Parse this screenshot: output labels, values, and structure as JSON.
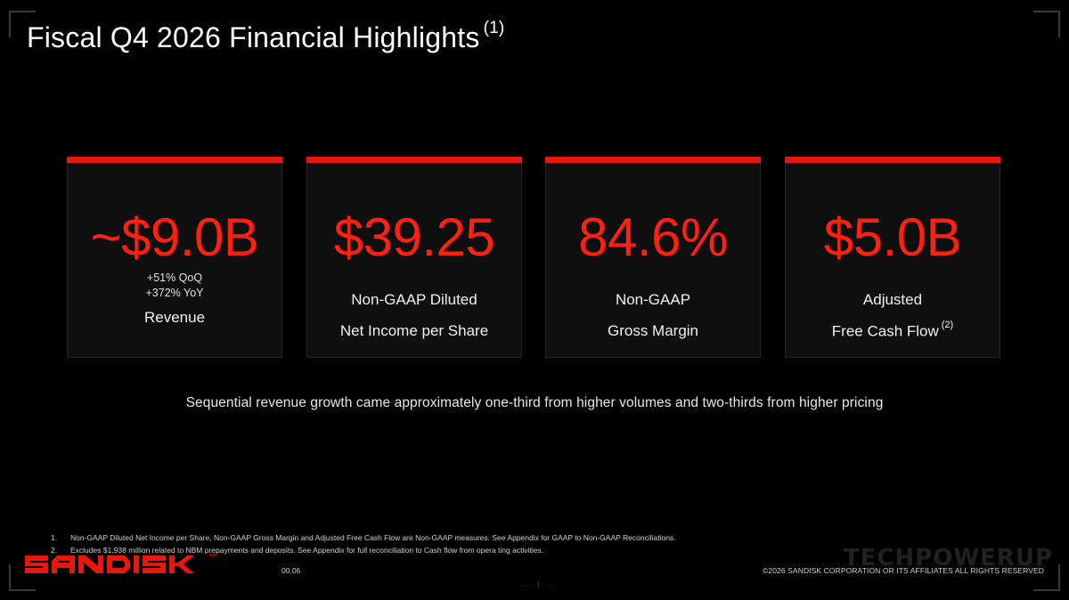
{
  "slide": {
    "title": "Fiscal Q4 2026 Financial Highlights",
    "title_footnote": "(1)",
    "accent_color": "#e8170e",
    "value_color": "#ff2010"
  },
  "cards": [
    {
      "value": "~$9.0B",
      "growth_qoq": "+51% QoQ",
      "growth_yoy": "+372% YoY",
      "label": "Revenue"
    },
    {
      "value": "$39.25",
      "label_line1": "Non-GAAP Diluted",
      "label_line2": "Net Income per Share"
    },
    {
      "value": "84.6%",
      "label_line1": "Non-GAAP",
      "label_line2": "Gross Margin"
    },
    {
      "value": "$5.0B",
      "label_line1": "Adjusted",
      "label_line2": "Free Cash Flow",
      "label_footnote": "(2)"
    }
  ],
  "summary": "Sequential revenue growth came approximately one-third from higher volumes and two-thirds from higher pricing",
  "footnotes": [
    {
      "num": "1.",
      "text": "Non-GAAP Diluted Net Income per Share, Non-GAAP Gross Margin and Adjusted Free Cash Flow are Non-GAAP measures. See Appendix for GAAP to Non-GAAP Reconciliations."
    },
    {
      "num": "2.",
      "text": "Excludes $1,938 million related to NBM prepayments and deposits. See Appendix for full reconciliation to Cash flow from opera ting activities."
    }
  ],
  "footer": {
    "logo_text": "SANDISK",
    "logo_tm": "™",
    "page_number": "00.06",
    "copyright": "©2026 SANDISK CORPORATION OR ITS AFFILIATES ALL RIGHTS RESERVED",
    "watermark": "TECHPOWERUP",
    "bottom_marker": ". . . | . . ."
  }
}
